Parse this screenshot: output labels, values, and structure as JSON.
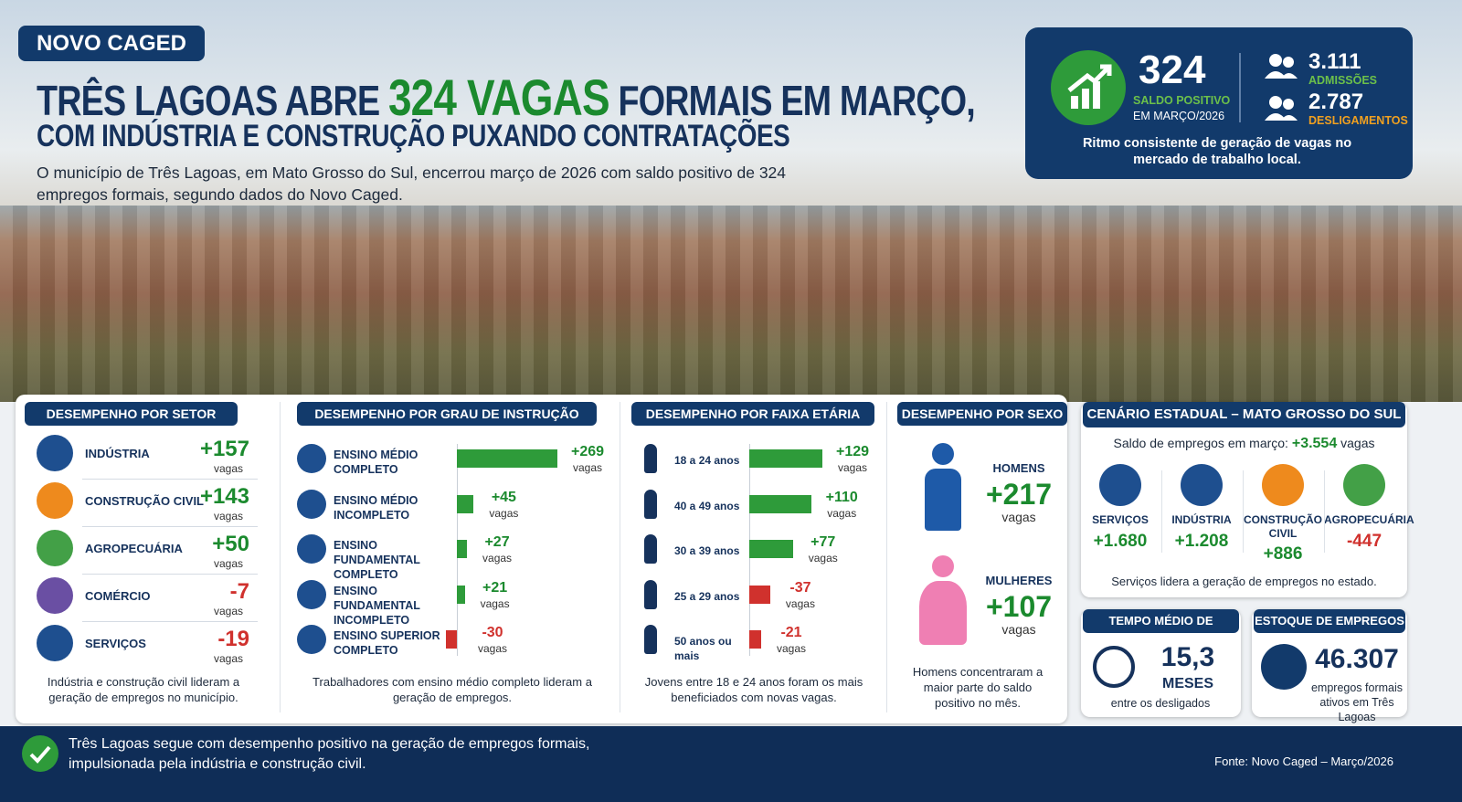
{
  "header": {
    "tag": "NOVO CAGED",
    "title_pre": "TRÊS LAGOAS ABRE",
    "title_highlight": "324 VAGAS",
    "title_post": "FORMAIS EM MARÇO,",
    "title_line2": "COM INDÚSTRIA E CONSTRUÇÃO PUXANDO CONTRATAÇÕES",
    "lead": "O município de Três Lagoas, em Mato Grosso do Sul, encerrou março de 2026 com saldo positivo de 324 empregos formais, segundo dados do Novo Caged."
  },
  "summary": {
    "saldo": "324",
    "saldo_label": "SALDO POSITIVO",
    "saldo_period": "EM MARÇO/2026",
    "admissoes": "3.111",
    "admissoes_label": "ADMISSÕES",
    "desligamentos": "2.787",
    "desligamentos_label": "DESLIGAMENTOS",
    "note": "Ritmo consistente de geração de vagas no mercado de trabalho local."
  },
  "setor": {
    "title": "DESEMPENHO POR SETOR",
    "unit": "vagas",
    "rows": [
      {
        "label": "INDÚSTRIA",
        "value": "+157",
        "color": "#1e4f8f"
      },
      {
        "label": "CONSTRUÇÃO CIVIL",
        "value": "+143",
        "color": "#ee8a1d"
      },
      {
        "label": "AGROPECUÁRIA",
        "value": "+50",
        "color": "#43a047"
      },
      {
        "label": "COMÉRCIO",
        "value": "-7",
        "color": "#6a4fa3"
      },
      {
        "label": "SERVIÇOS",
        "value": "-19",
        "color": "#1e4f8f"
      }
    ],
    "note": "Indústria e construção civil lideram a geração de empregos no município."
  },
  "instrucao": {
    "title": "DESEMPENHO POR GRAU DE INSTRUÇÃO",
    "unit": "vagas",
    "rows": [
      {
        "label": "ENSINO MÉDIO COMPLETO",
        "value": 269,
        "value_label": "+269"
      },
      {
        "label": "ENSINO MÉDIO INCOMPLETO",
        "value": 45,
        "value_label": "+45"
      },
      {
        "label": "ENSINO FUNDAMENTAL COMPLETO",
        "value": 27,
        "value_label": "+27"
      },
      {
        "label": "ENSINO FUNDAMENTAL INCOMPLETO",
        "value": 21,
        "value_label": "+21"
      },
      {
        "label": "ENSINO SUPERIOR COMPLETO",
        "value": -30,
        "value_label": "-30"
      }
    ],
    "note": "Trabalhadores com ensino médio completo lideram a geração de empregos."
  },
  "faixa": {
    "title": "DESEMPENHO POR FAIXA ETÁRIA",
    "unit": "vagas",
    "rows": [
      {
        "label": "18 a 24 anos",
        "value": 129,
        "value_label": "+129"
      },
      {
        "label": "40 a 49 anos",
        "value": 110,
        "value_label": "+110"
      },
      {
        "label": "30 a 39 anos",
        "value": 77,
        "value_label": "+77"
      },
      {
        "label": "25 a 29 anos",
        "value": -37,
        "value_label": "-37"
      },
      {
        "label": "50 anos ou mais",
        "value": -21,
        "value_label": "-21"
      }
    ],
    "note": "Jovens entre 18 e 24 anos foram os mais beneficiados com novas vagas."
  },
  "sexo": {
    "title": "DESEMPENHO POR SEXO",
    "unit": "vagas",
    "rows": [
      {
        "label": "HOMENS",
        "value": "+217",
        "color": "#1e5aa8"
      },
      {
        "label": "MULHERES",
        "value": "+107",
        "color": "#ef7fb3"
      }
    ],
    "note": "Homens concentraram a maior parte do saldo positivo no mês."
  },
  "estadual": {
    "title": "CENÁRIO ESTADUAL – MATO GROSSO DO SUL",
    "saldo_text": "Saldo de empregos em março:",
    "saldo_value": "+3.554",
    "saldo_unit": "vagas",
    "sectors": [
      {
        "label": "SERVIÇOS",
        "value": "+1.680",
        "color": "#1e4f8f"
      },
      {
        "label": "INDÚSTRIA",
        "value": "+1.208",
        "color": "#1e4f8f"
      },
      {
        "label": "CONSTRUÇÃO CIVIL",
        "value": "+886",
        "color": "#ee8a1d"
      },
      {
        "label": "AGROPECUÁRIA",
        "value": "-447",
        "color": "#43a047"
      }
    ],
    "note": "Serviços lidera a geração de empregos no estado."
  },
  "tempo": {
    "title": "TEMPO MÉDIO DE EMPREGO",
    "value": "15,3",
    "unit": "MESES",
    "note": "entre os desligados"
  },
  "estoque": {
    "title": "ESTOQUE DE EMPREGOS",
    "value": "46.307",
    "note": "empregos formais ativos em Três Lagoas"
  },
  "footer": {
    "message": "Três Lagoas segue com desempenho positivo na geração de empregos formais, impulsionada pela indústria e construção civil.",
    "source": "Fonte: Novo Caged – Março/2026"
  }
}
